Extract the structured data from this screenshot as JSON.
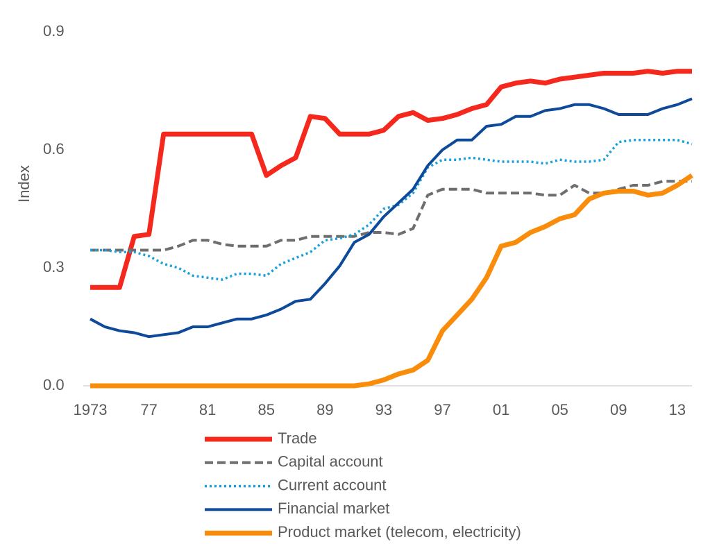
{
  "chart_data": {
    "type": "line",
    "y_label": "Index",
    "x": [
      1973,
      1974,
      1975,
      1976,
      1977,
      1978,
      1979,
      1980,
      1981,
      1982,
      1983,
      1984,
      1985,
      1986,
      1987,
      1988,
      1989,
      1990,
      1991,
      1992,
      1993,
      1994,
      1995,
      1996,
      1997,
      1998,
      1999,
      2000,
      2001,
      2002,
      2003,
      2004,
      2005,
      2006,
      2007,
      2008,
      2009,
      2010,
      2011,
      2012,
      2013,
      2014
    ],
    "xlim": [
      1973,
      2014
    ],
    "xticks": [
      1973,
      {
        "value": 1977,
        "label": "77"
      },
      {
        "value": 1981,
        "label": "81"
      },
      {
        "value": 1985,
        "label": "85"
      },
      {
        "value": 1989,
        "label": "89"
      },
      {
        "value": 1993,
        "label": "93"
      },
      {
        "value": 1997,
        "label": "97"
      },
      {
        "value": 2001,
        "label": "01"
      },
      {
        "value": 2005,
        "label": "05"
      },
      {
        "value": 2009,
        "label": "09"
      },
      {
        "value": 2013,
        "label": "13"
      }
    ],
    "ylim": [
      0,
      0.9
    ],
    "yticks": [
      {
        "value": 0,
        "label": "0.0"
      },
      0.3,
      0.6,
      0.9
    ],
    "grid": false,
    "legend": "bottom",
    "series": [
      {
        "name": "Trade",
        "color": "#f5281e",
        "style": "solid",
        "width": 7,
        "values": [
          0.25,
          0.25,
          0.25,
          0.38,
          0.385,
          0.64,
          0.64,
          0.64,
          0.64,
          0.64,
          0.64,
          0.64,
          0.535,
          0.56,
          0.58,
          0.685,
          0.68,
          0.64,
          0.64,
          0.64,
          0.65,
          0.685,
          0.695,
          0.675,
          0.68,
          0.69,
          0.705,
          0.715,
          0.76,
          0.77,
          0.775,
          0.77,
          0.78,
          0.785,
          0.79,
          0.795,
          0.795,
          0.795,
          0.8,
          0.795,
          0.8,
          0.8
        ]
      },
      {
        "name": "Capital account",
        "color": "#6e6e6e",
        "style": "dashed",
        "width": 4,
        "values": [
          0.345,
          0.345,
          0.345,
          0.345,
          0.345,
          0.345,
          0.355,
          0.37,
          0.37,
          0.36,
          0.355,
          0.355,
          0.355,
          0.37,
          0.37,
          0.38,
          0.38,
          0.38,
          0.38,
          0.39,
          0.39,
          0.385,
          0.4,
          0.485,
          0.5,
          0.5,
          0.5,
          0.49,
          0.49,
          0.49,
          0.49,
          0.485,
          0.485,
          0.51,
          0.49,
          0.49,
          0.5,
          0.51,
          0.51,
          0.52,
          0.52,
          0.52
        ]
      },
      {
        "name": "Current account",
        "color": "#1aa0dc",
        "style": "dotted",
        "width": 3.5,
        "values": [
          0.345,
          0.345,
          0.34,
          0.34,
          0.33,
          0.31,
          0.3,
          0.28,
          0.275,
          0.27,
          0.285,
          0.285,
          0.28,
          0.31,
          0.325,
          0.34,
          0.37,
          0.375,
          0.385,
          0.41,
          0.45,
          0.46,
          0.49,
          0.555,
          0.575,
          0.575,
          0.58,
          0.575,
          0.57,
          0.57,
          0.57,
          0.565,
          0.575,
          0.57,
          0.57,
          0.575,
          0.62,
          0.625,
          0.625,
          0.625,
          0.625,
          0.615
        ]
      },
      {
        "name": "Financial market",
        "color": "#0d4a9a",
        "style": "solid",
        "width": 4,
        "values": [
          0.17,
          0.15,
          0.14,
          0.135,
          0.125,
          0.13,
          0.135,
          0.15,
          0.15,
          0.16,
          0.17,
          0.17,
          0.18,
          0.195,
          0.215,
          0.22,
          0.26,
          0.305,
          0.365,
          0.385,
          0.43,
          0.465,
          0.5,
          0.56,
          0.6,
          0.625,
          0.625,
          0.66,
          0.665,
          0.685,
          0.685,
          0.7,
          0.705,
          0.715,
          0.715,
          0.705,
          0.69,
          0.69,
          0.69,
          0.705,
          0.715,
          0.73
        ]
      },
      {
        "name": "Product market (telecom, electricity)",
        "color": "#f98c0a",
        "style": "solid",
        "width": 7,
        "values": [
          0,
          0,
          0,
          0,
          0,
          0,
          0,
          0,
          0,
          0,
          0,
          0,
          0,
          0,
          0,
          0,
          0,
          0,
          0,
          0.005,
          0.015,
          0.03,
          0.04,
          0.065,
          0.14,
          0.18,
          0.22,
          0.275,
          0.355,
          0.365,
          0.39,
          0.405,
          0.425,
          0.435,
          0.475,
          0.49,
          0.495,
          0.495,
          0.485,
          0.49,
          0.51,
          0.535
        ]
      }
    ]
  }
}
